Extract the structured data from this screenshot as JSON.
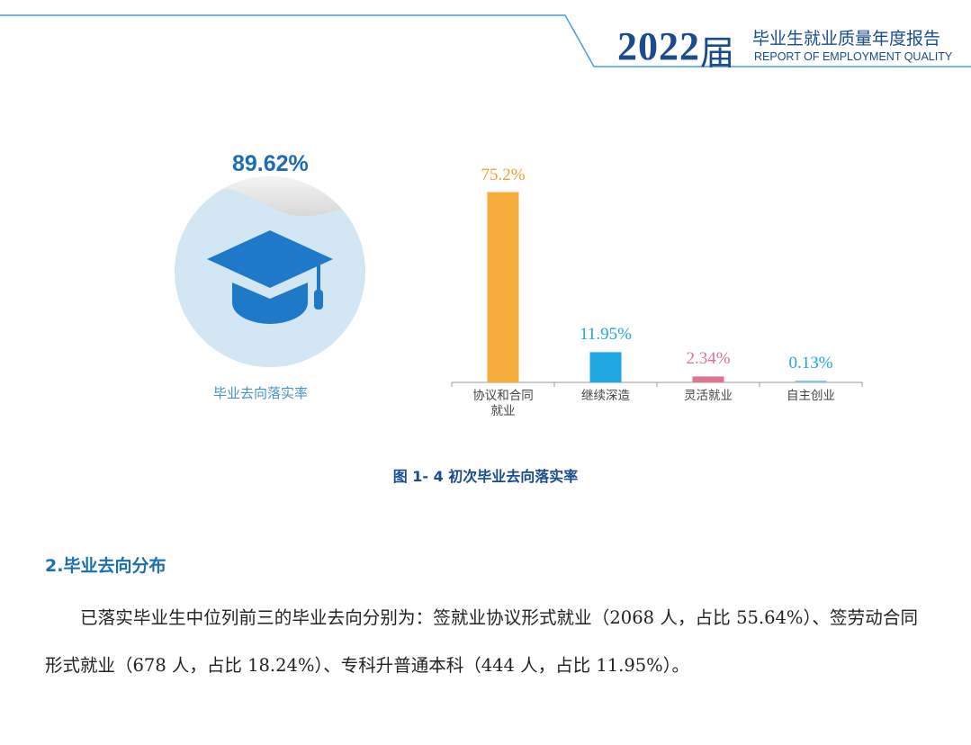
{
  "header": {
    "year": "2022",
    "jie": "届",
    "report_cn": "毕业生就业质量年度报告",
    "report_en": "REPORT OF EMPLOYMENT QUALITY",
    "line_color": "#4a9be0",
    "text_color": "#1a4b8c"
  },
  "rate_panel": {
    "value": "89.62%",
    "value_fraction": 0.8962,
    "label": "毕业去向落实率",
    "icon": "graduation-cap-icon",
    "circle_color": "#d3e6f3",
    "cap_color": "#1e79c8"
  },
  "chart_data": {
    "type": "bar",
    "categories": [
      [
        "协议和合同",
        "就业"
      ],
      [
        "继续深造"
      ],
      [
        "灵活就业"
      ],
      [
        "自主创业"
      ]
    ],
    "values": [
      75.2,
      11.95,
      2.34,
      0.13
    ],
    "value_labels": [
      "75.2%",
      "11.95%",
      "2.34%",
      "0.13%"
    ],
    "colors": [
      "#f6ac3b",
      "#1ea7e0",
      "#e0738e",
      "#7ec8e8"
    ],
    "label_colors": [
      "#f0a030",
      "#1ea7e0",
      "#e0738e",
      "#1ea7e0"
    ],
    "ylim": [
      0,
      80
    ],
    "grid": false,
    "legend": "none"
  },
  "figure": {
    "caption": "图 1- 4  初次毕业去向落实率"
  },
  "section": {
    "title": "2.毕业去向分布",
    "paragraph": "已落实毕业生中位列前三的毕业去向分别为：签就业协议形式就业（2068 人，占比 55.64%）、签劳动合同形式就业（678 人，占比 18.24%）、专科升普通本科（444 人，占比 11.95%）。"
  }
}
